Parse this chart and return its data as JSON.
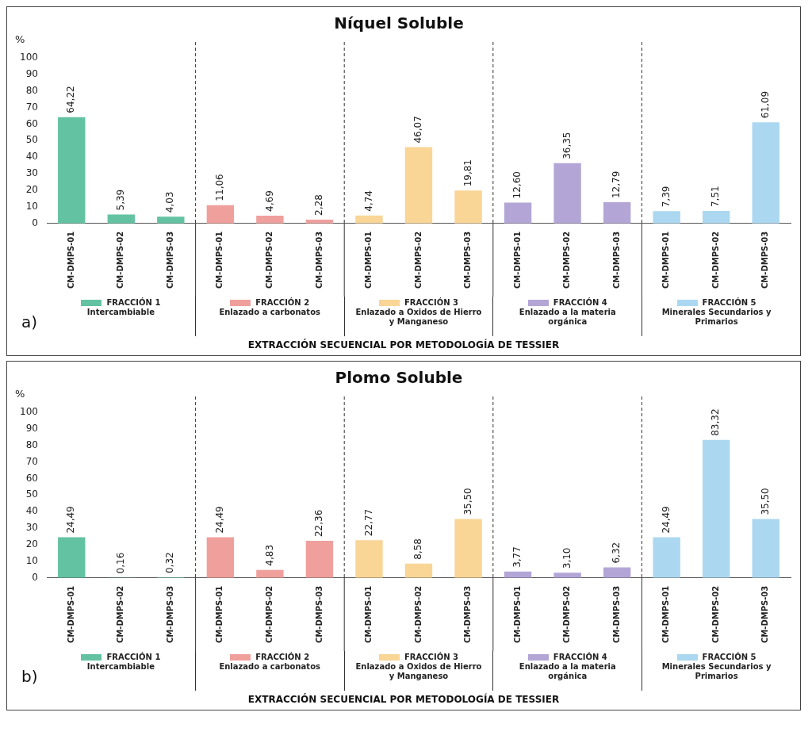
{
  "chart_data": [
    {
      "type": "bar",
      "title": "Níquel Soluble",
      "ylabel": "%",
      "xlabel": "EXTRACCIÓN SECUENCIAL POR METODOLOGÍA DE TESSIER",
      "annotations": [
        "a)"
      ],
      "legend": "bottom",
      "ylim": [
        0,
        100
      ],
      "yticks": [
        0,
        10,
        20,
        30,
        40,
        50,
        60,
        70,
        80,
        90,
        100
      ],
      "categories": [
        "CM-DMPS-01",
        "CM-DMPS-02",
        "CM-DMPS-03",
        "CM-DMPS-01",
        "CM-DMPS-02",
        "CM-DMPS-03",
        "CM-DMPS-01",
        "CM-DMPS-02",
        "CM-DMPS-03",
        "CM-DMPS-01",
        "CM-DMPS-02",
        "CM-DMPS-03",
        "CM-DMPS-01",
        "CM-DMPS-02",
        "CM-DMPS-03"
      ],
      "series": [
        {
          "name": "FRACCIÓN 1\nIntercambiable",
          "color": "#63c2a2",
          "values": [
            64.22,
            5.39,
            4.03,
            null,
            null,
            null,
            null,
            null,
            null,
            null,
            null,
            null,
            null,
            null,
            null
          ],
          "value_labels": [
            "64,22",
            "5,39",
            "4,03",
            null,
            null,
            null,
            null,
            null,
            null,
            null,
            null,
            null,
            null,
            null,
            null
          ]
        },
        {
          "name": "FRACCIÓN 2\nEnlazado a carbonatos",
          "color": "#f0a09c",
          "values": [
            null,
            null,
            null,
            11.06,
            4.69,
            2.28,
            null,
            null,
            null,
            null,
            null,
            null,
            null,
            null,
            null
          ],
          "value_labels": [
            null,
            null,
            null,
            "11,06",
            "4,69",
            "2,28",
            null,
            null,
            null,
            null,
            null,
            null,
            null,
            null,
            null
          ]
        },
        {
          "name": "FRACCIÓN 3\nEnlazado a Oxidos de Hierro\ny Manganeso",
          "color": "#f9d596",
          "values": [
            null,
            null,
            null,
            null,
            null,
            null,
            4.74,
            46.07,
            19.81,
            null,
            null,
            null,
            null,
            null,
            null
          ],
          "value_labels": [
            null,
            null,
            null,
            null,
            null,
            null,
            "4,74",
            "46,07",
            "19,81",
            null,
            null,
            null,
            null,
            null,
            null
          ]
        },
        {
          "name": "FRACCIÓN 4\nEnlazado a la materia\norgánica",
          "color": "#b3a6d6",
          "values": [
            null,
            null,
            null,
            null,
            null,
            null,
            null,
            null,
            null,
            12.6,
            36.35,
            12.79,
            null,
            null,
            null
          ],
          "value_labels": [
            null,
            null,
            null,
            null,
            null,
            null,
            null,
            null,
            null,
            "12,60",
            "36,35",
            "12,79",
            null,
            null,
            null
          ]
        },
        {
          "name": "FRACCIÓN 5\nMinerales Secundarios y\nPrimarios",
          "color": "#abd8f0",
          "values": [
            null,
            null,
            null,
            null,
            null,
            null,
            null,
            null,
            null,
            null,
            null,
            null,
            7.39,
            7.51,
            61.09
          ],
          "value_labels": [
            null,
            null,
            null,
            null,
            null,
            null,
            null,
            null,
            null,
            null,
            null,
            null,
            "7,39",
            "7,51",
            "61,09"
          ]
        }
      ]
    },
    {
      "type": "bar",
      "title": "Plomo Soluble",
      "ylabel": "%",
      "xlabel": "EXTRACCIÓN SECUENCIAL POR METODOLOGÍA DE TESSIER",
      "annotations": [
        "b)"
      ],
      "legend": "bottom",
      "ylim": [
        0,
        100
      ],
      "yticks": [
        0,
        10,
        20,
        30,
        40,
        50,
        60,
        70,
        80,
        90,
        100
      ],
      "categories": [
        "CM-DMPS-01",
        "CM-DMPS-02",
        "CM-DMPS-03",
        "CM-DMPS-01",
        "CM-DMPS-02",
        "CM-DMPS-03",
        "CM-DMPS-01",
        "CM-DMPS-02",
        "CM-DMPS-03",
        "CM-DMPS-01",
        "CM-DMPS-02",
        "CM-DMPS-03",
        "CM-DMPS-01",
        "CM-DMPS-02",
        "CM-DMPS-03"
      ],
      "series": [
        {
          "name": "FRACCIÓN 1\nIntercambiable",
          "color": "#63c2a2",
          "values": [
            24.49,
            0.16,
            0.32,
            null,
            null,
            null,
            null,
            null,
            null,
            null,
            null,
            null,
            null,
            null,
            null
          ],
          "value_labels": [
            "24,49",
            "0,16",
            "0,32",
            null,
            null,
            null,
            null,
            null,
            null,
            null,
            null,
            null,
            null,
            null,
            null
          ]
        },
        {
          "name": "FRACCIÓN 2\nEnlazado a carbonatos",
          "color": "#f0a09c",
          "values": [
            null,
            null,
            null,
            24.49,
            4.83,
            22.36,
            null,
            null,
            null,
            null,
            null,
            null,
            null,
            null,
            null
          ],
          "value_labels": [
            null,
            null,
            null,
            "24,49",
            "4,83",
            "22,36",
            null,
            null,
            null,
            null,
            null,
            null,
            null,
            null,
            null
          ]
        },
        {
          "name": "FRACCIÓN 3\nEnlazado a Oxidos de Hierro\ny Manganeso",
          "color": "#f9d596",
          "values": [
            null,
            null,
            null,
            null,
            null,
            null,
            22.77,
            8.58,
            35.5,
            null,
            null,
            null,
            null,
            null,
            null
          ],
          "value_labels": [
            null,
            null,
            null,
            null,
            null,
            null,
            "22,77",
            "8,58",
            "35,50",
            null,
            null,
            null,
            null,
            null,
            null
          ]
        },
        {
          "name": "FRACCIÓN 4\nEnlazado a la materia\norgánica",
          "color": "#b3a6d6",
          "values": [
            null,
            null,
            null,
            null,
            null,
            null,
            null,
            null,
            null,
            3.77,
            3.1,
            6.32,
            null,
            null,
            null
          ],
          "value_labels": [
            null,
            null,
            null,
            null,
            null,
            null,
            null,
            null,
            null,
            "3,77",
            "3,10",
            "6,32",
            null,
            null,
            null
          ]
        },
        {
          "name": "FRACCIÓN 5\nMinerales Secundarios y\nPrimarios",
          "color": "#abd8f0",
          "values": [
            null,
            null,
            null,
            null,
            null,
            null,
            null,
            null,
            null,
            null,
            null,
            null,
            24.49,
            83.32,
            35.5
          ],
          "value_labels": [
            null,
            null,
            null,
            null,
            null,
            null,
            null,
            null,
            null,
            null,
            null,
            null,
            "24,49",
            "83,32",
            "35,50"
          ]
        }
      ]
    }
  ]
}
